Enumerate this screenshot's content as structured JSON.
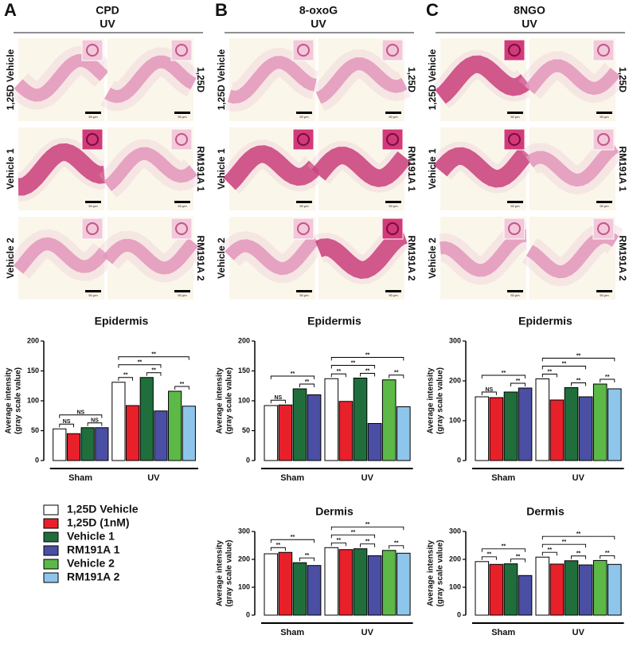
{
  "panels": [
    {
      "letter": "A",
      "title": "CPD",
      "subtitle": "UV",
      "left_labels": [
        "1,25D Vehicle",
        "Vehicle 1",
        "Vehicle 2"
      ],
      "right_labels": [
        "1,25D",
        "RM191A 1",
        "RM191A 2"
      ],
      "scale": "50 μm"
    },
    {
      "letter": "B",
      "title": "8-oxoG",
      "subtitle": "UV",
      "left_labels": [
        "1,25D Vehicle",
        "Vehicle 1",
        "Vehicle 2"
      ],
      "right_labels": [
        "1,25D",
        "RM191A 1",
        "RM191A 2"
      ],
      "scale": "50 μm"
    },
    {
      "letter": "C",
      "title": "8NGO",
      "subtitle": "UV",
      "left_labels": [
        "1,25D Vehicle",
        "Vehicle 1",
        "Vehicle 2"
      ],
      "right_labels": [
        "1,25D",
        "RM191A 1",
        "RM191A 2"
      ],
      "scale": "50 μm"
    }
  ],
  "chart_data": [
    {
      "type": "bar",
      "title": "Epidermis",
      "ylabel": [
        "Average intensity",
        "(gray scale value)"
      ],
      "groups": [
        "Sham",
        "UV"
      ],
      "series": [
        {
          "name": "1,25D Vehicle",
          "color": "#ffffff",
          "values": [
            53,
            131
          ]
        },
        {
          "name": "1,25D (1nM)",
          "color": "#e8202a",
          "values": [
            45,
            92
          ]
        },
        {
          "name": "Vehicle 1",
          "color": "#1f6e3c",
          "values": [
            55,
            139
          ]
        },
        {
          "name": "RM191A 1",
          "color": "#4a4fa3",
          "values": [
            55,
            83
          ]
        },
        {
          "name": "Vehicle 2",
          "color": "#5cb947",
          "values": [
            null,
            116
          ]
        },
        {
          "name": "RM191A 2",
          "color": "#8ec5ea",
          "values": [
            null,
            91
          ]
        }
      ],
      "ylim": [
        0,
        200
      ],
      "yticks": [
        0,
        50,
        100,
        150,
        200
      ],
      "annotations": [
        {
          "text": "NS",
          "span": [
            [
              0,
              0
            ],
            [
              0,
              1
            ]
          ]
        },
        {
          "text": "NS",
          "span": [
            [
              0,
              2
            ],
            [
              0,
              3
            ]
          ]
        },
        {
          "text": "NS",
          "span": [
            [
              0,
              0
            ],
            [
              0,
              3
            ]
          ]
        },
        {
          "text": "**",
          "span": [
            [
              1,
              0
            ],
            [
              1,
              1
            ]
          ]
        },
        {
          "text": "**",
          "span": [
            [
              1,
              2
            ],
            [
              1,
              3
            ]
          ]
        },
        {
          "text": "**",
          "span": [
            [
              1,
              4
            ],
            [
              1,
              5
            ]
          ]
        },
        {
          "text": "**",
          "span": [
            [
              1,
              0
            ],
            [
              1,
              3
            ]
          ]
        },
        {
          "text": "**",
          "span": [
            [
              1,
              0
            ],
            [
              1,
              5
            ]
          ]
        }
      ]
    },
    {
      "type": "bar",
      "title": "Epidermis",
      "ylabel": [
        "Average intensity",
        "(gray scale value)"
      ],
      "groups": [
        "Sham",
        "UV"
      ],
      "series": [
        {
          "name": "1,25D Vehicle",
          "color": "#ffffff",
          "values": [
            92,
            137
          ]
        },
        {
          "name": "1,25D (1nM)",
          "color": "#e8202a",
          "values": [
            93,
            99
          ]
        },
        {
          "name": "Vehicle 1",
          "color": "#1f6e3c",
          "values": [
            120,
            138
          ]
        },
        {
          "name": "RM191A 1",
          "color": "#4a4fa3",
          "values": [
            110,
            62
          ]
        },
        {
          "name": "Vehicle 2",
          "color": "#5cb947",
          "values": [
            null,
            135
          ]
        },
        {
          "name": "RM191A 2",
          "color": "#8ec5ea",
          "values": [
            null,
            90
          ]
        }
      ],
      "ylim": [
        0,
        200
      ],
      "yticks": [
        0,
        50,
        100,
        150,
        200
      ],
      "annotations": [
        {
          "text": "NS",
          "span": [
            [
              0,
              0
            ],
            [
              0,
              1
            ]
          ]
        },
        {
          "text": "**",
          "span": [
            [
              0,
              2
            ],
            [
              0,
              3
            ]
          ]
        },
        {
          "text": "**",
          "span": [
            [
              0,
              0
            ],
            [
              0,
              3
            ]
          ]
        },
        {
          "text": "**",
          "span": [
            [
              1,
              0
            ],
            [
              1,
              1
            ]
          ]
        },
        {
          "text": "**",
          "span": [
            [
              1,
              2
            ],
            [
              1,
              3
            ]
          ]
        },
        {
          "text": "**",
          "span": [
            [
              1,
              4
            ],
            [
              1,
              5
            ]
          ]
        },
        {
          "text": "**",
          "span": [
            [
              1,
              0
            ],
            [
              1,
              3
            ]
          ]
        },
        {
          "text": "**",
          "span": [
            [
              1,
              0
            ],
            [
              1,
              5
            ]
          ]
        }
      ]
    },
    {
      "type": "bar",
      "title": "Epidermis",
      "ylabel": [
        "Average intensity",
        "(gray scale value)"
      ],
      "groups": [
        "Sham",
        "UV"
      ],
      "series": [
        {
          "name": "1,25D Vehicle",
          "color": "#ffffff",
          "values": [
            160,
            205
          ]
        },
        {
          "name": "1,25D (1nM)",
          "color": "#e8202a",
          "values": [
            158,
            152
          ]
        },
        {
          "name": "Vehicle 1",
          "color": "#1f6e3c",
          "values": [
            172,
            183
          ]
        },
        {
          "name": "RM191A 1",
          "color": "#4a4fa3",
          "values": [
            182,
            160
          ]
        },
        {
          "name": "Vehicle 2",
          "color": "#5cb947",
          "values": [
            null,
            192
          ]
        },
        {
          "name": "RM191A 2",
          "color": "#8ec5ea",
          "values": [
            null,
            180
          ]
        }
      ],
      "ylim": [
        0,
        300
      ],
      "yticks": [
        0,
        100,
        200,
        300
      ],
      "annotations": [
        {
          "text": "NS",
          "span": [
            [
              0,
              0
            ],
            [
              0,
              1
            ]
          ]
        },
        {
          "text": "**",
          "span": [
            [
              0,
              2
            ],
            [
              0,
              3
            ]
          ]
        },
        {
          "text": "**",
          "span": [
            [
              0,
              0
            ],
            [
              0,
              3
            ]
          ]
        },
        {
          "text": "**",
          "span": [
            [
              1,
              0
            ],
            [
              1,
              1
            ]
          ]
        },
        {
          "text": "**",
          "span": [
            [
              1,
              2
            ],
            [
              1,
              3
            ]
          ]
        },
        {
          "text": "**",
          "span": [
            [
              1,
              4
            ],
            [
              1,
              5
            ]
          ]
        },
        {
          "text": "**",
          "span": [
            [
              1,
              0
            ],
            [
              1,
              3
            ]
          ]
        },
        {
          "text": "**",
          "span": [
            [
              1,
              0
            ],
            [
              1,
              5
            ]
          ]
        }
      ]
    },
    {
      "type": "bar",
      "title": "Dermis",
      "ylabel": [
        "Average intensity",
        "(gray scale value)"
      ],
      "groups": [
        "Sham",
        "UV"
      ],
      "series": [
        {
          "name": "1,25D Vehicle",
          "color": "#ffffff",
          "values": [
            220,
            242
          ]
        },
        {
          "name": "1,25D (1nM)",
          "color": "#e8202a",
          "values": [
            225,
            235
          ]
        },
        {
          "name": "Vehicle 1",
          "color": "#1f6e3c",
          "values": [
            188,
            238
          ]
        },
        {
          "name": "RM191A 1",
          "color": "#4a4fa3",
          "values": [
            178,
            213
          ]
        },
        {
          "name": "Vehicle 2",
          "color": "#5cb947",
          "values": [
            null,
            232
          ]
        },
        {
          "name": "RM191A 2",
          "color": "#8ec5ea",
          "values": [
            null,
            222
          ]
        }
      ],
      "ylim": [
        0,
        300
      ],
      "yticks": [
        0,
        100,
        200,
        300
      ],
      "annotations": [
        {
          "text": "**",
          "span": [
            [
              0,
              0
            ],
            [
              0,
              1
            ]
          ]
        },
        {
          "text": "**",
          "span": [
            [
              0,
              2
            ],
            [
              0,
              3
            ]
          ]
        },
        {
          "text": "**",
          "span": [
            [
              0,
              0
            ],
            [
              0,
              3
            ]
          ]
        },
        {
          "text": "**",
          "span": [
            [
              1,
              0
            ],
            [
              1,
              1
            ]
          ]
        },
        {
          "text": "**",
          "span": [
            [
              1,
              2
            ],
            [
              1,
              3
            ]
          ]
        },
        {
          "text": "**",
          "span": [
            [
              1,
              4
            ],
            [
              1,
              5
            ]
          ]
        },
        {
          "text": "**",
          "span": [
            [
              1,
              0
            ],
            [
              1,
              3
            ]
          ]
        },
        {
          "text": "**",
          "span": [
            [
              1,
              0
            ],
            [
              1,
              5
            ]
          ]
        }
      ]
    },
    {
      "type": "bar",
      "title": "Dermis",
      "ylabel": [
        "Average intensity",
        "(gray scale value)"
      ],
      "groups": [
        "Sham",
        "UV"
      ],
      "series": [
        {
          "name": "1,25D Vehicle",
          "color": "#ffffff",
          "values": [
            192,
            208
          ]
        },
        {
          "name": "1,25D (1nM)",
          "color": "#e8202a",
          "values": [
            182,
            183
          ]
        },
        {
          "name": "Vehicle 1",
          "color": "#1f6e3c",
          "values": [
            184,
            195
          ]
        },
        {
          "name": "RM191A 1",
          "color": "#4a4fa3",
          "values": [
            142,
            180
          ]
        },
        {
          "name": "Vehicle 2",
          "color": "#5cb947",
          "values": [
            null,
            196
          ]
        },
        {
          "name": "RM191A 2",
          "color": "#8ec5ea",
          "values": [
            null,
            182
          ]
        }
      ],
      "ylim": [
        0,
        300
      ],
      "yticks": [
        0,
        100,
        200,
        300
      ],
      "annotations": [
        {
          "text": "**",
          "span": [
            [
              0,
              0
            ],
            [
              0,
              1
            ]
          ]
        },
        {
          "text": "**",
          "span": [
            [
              0,
              2
            ],
            [
              0,
              3
            ]
          ]
        },
        {
          "text": "**",
          "span": [
            [
              0,
              0
            ],
            [
              0,
              3
            ]
          ]
        },
        {
          "text": "**",
          "span": [
            [
              1,
              0
            ],
            [
              1,
              1
            ]
          ]
        },
        {
          "text": "**",
          "span": [
            [
              1,
              2
            ],
            [
              1,
              3
            ]
          ]
        },
        {
          "text": "**",
          "span": [
            [
              1,
              4
            ],
            [
              1,
              5
            ]
          ]
        },
        {
          "text": "**",
          "span": [
            [
              1,
              0
            ],
            [
              1,
              3
            ]
          ]
        },
        {
          "text": "**",
          "span": [
            [
              1,
              0
            ],
            [
              1,
              5
            ]
          ]
        }
      ]
    }
  ]
}
